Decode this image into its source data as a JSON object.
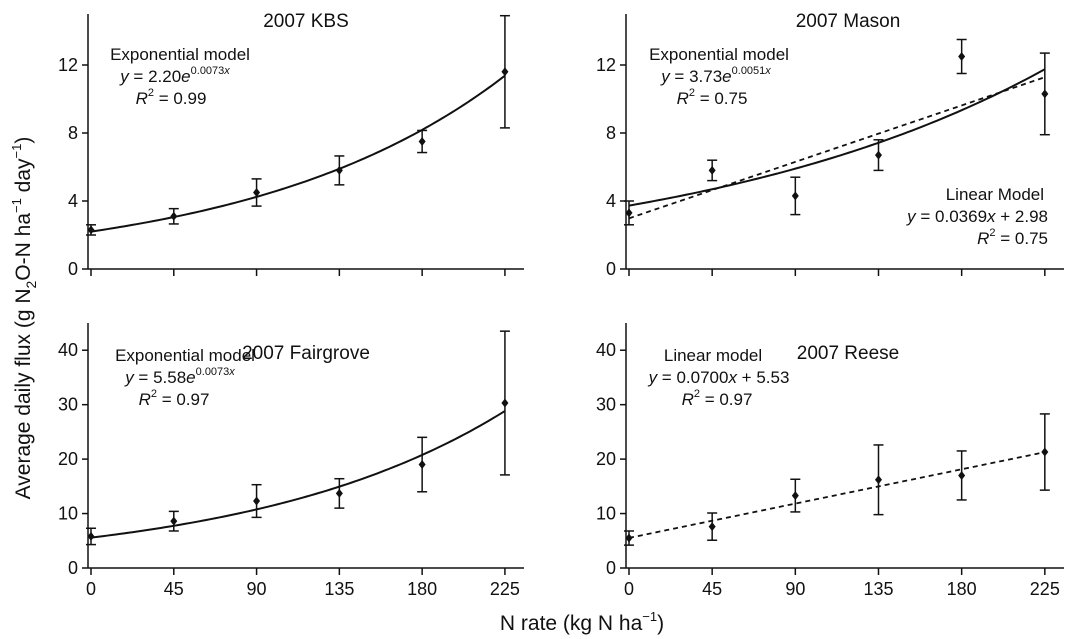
{
  "figure": {
    "ylabel": "Average daily flux (g N₂O-N ha⁻¹ day⁻¹)",
    "xlabel": "N rate (kg N ha⁻¹)"
  },
  "chart_data": [
    {
      "type": "scatter",
      "title": "2007 KBS",
      "x": [
        0,
        45,
        90,
        135,
        180,
        225
      ],
      "y": [
        2.3,
        3.1,
        4.5,
        5.8,
        7.5,
        11.6
      ],
      "err": [
        0.3,
        0.45,
        0.8,
        0.85,
        0.65,
        3.3
      ],
      "ylim": [
        0,
        15
      ],
      "yticks": [
        0,
        4,
        8,
        12
      ],
      "xticks": [
        0,
        45,
        90,
        135,
        180,
        225
      ],
      "fits": [
        {
          "model": "exponential",
          "a": 2.2,
          "b": 0.0073,
          "style": "solid"
        }
      ],
      "annotation": [
        "Exponential model",
        "y = 2.20e^0.0073x",
        "R² = 0.99"
      ]
    },
    {
      "type": "scatter",
      "title": "2007 Mason",
      "x": [
        0,
        45,
        90,
        135,
        180,
        225
      ],
      "y": [
        3.3,
        5.8,
        4.3,
        6.7,
        12.5,
        10.3
      ],
      "err": [
        0.7,
        0.6,
        1.1,
        0.9,
        1.0,
        2.4
      ],
      "ylim": [
        0,
        15
      ],
      "yticks": [
        0,
        4,
        8,
        12
      ],
      "xticks": [
        0,
        45,
        90,
        135,
        180,
        225
      ],
      "fits": [
        {
          "model": "exponential",
          "a": 3.73,
          "b": 0.0051,
          "style": "solid"
        },
        {
          "model": "linear",
          "m": 0.0369,
          "c": 2.98,
          "style": "dashed"
        }
      ],
      "annotation": [
        "Exponential model",
        "y = 3.73e^0.0051x",
        "R² = 0.75"
      ],
      "annotation2": [
        "Linear Model",
        "y = 0.0369x + 2.98",
        "R² = 0.75"
      ]
    },
    {
      "type": "scatter",
      "title": "2007 Fairgrove",
      "x": [
        0,
        45,
        90,
        135,
        180,
        225
      ],
      "y": [
        5.8,
        8.6,
        12.3,
        13.7,
        19.0,
        30.3
      ],
      "err": [
        1.5,
        1.8,
        3.0,
        2.7,
        5.0,
        13.2
      ],
      "ylim": [
        0,
        45
      ],
      "yticks": [
        0,
        10,
        20,
        30,
        40
      ],
      "xticks": [
        0,
        45,
        90,
        135,
        180,
        225
      ],
      "fits": [
        {
          "model": "exponential",
          "a": 5.58,
          "b": 0.0073,
          "style": "solid"
        }
      ],
      "annotation": [
        "Exponential model",
        "y = 5.58e^0.0073x",
        "R² = 0.97"
      ]
    },
    {
      "type": "scatter",
      "title": "2007 Reese",
      "x": [
        0,
        45,
        90,
        135,
        180,
        225
      ],
      "y": [
        5.5,
        7.6,
        13.3,
        16.2,
        17.0,
        21.3
      ],
      "err": [
        1.3,
        2.5,
        3.0,
        6.4,
        4.5,
        7.0
      ],
      "ylim": [
        0,
        45
      ],
      "yticks": [
        0,
        10,
        20,
        30,
        40
      ],
      "xticks": [
        0,
        45,
        90,
        135,
        180,
        225
      ],
      "fits": [
        {
          "model": "linear",
          "m": 0.07,
          "c": 5.53,
          "style": "dashed"
        }
      ],
      "annotation": [
        "Linear model",
        "y = 0.0700x + 5.53",
        "R² = 0.97"
      ]
    }
  ]
}
